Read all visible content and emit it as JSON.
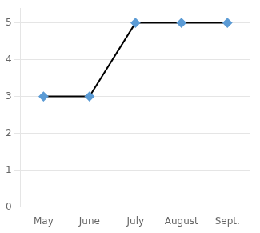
{
  "chart_data": {
    "type": "line",
    "categories": [
      "May",
      "June",
      "July",
      "August",
      "Sept."
    ],
    "values": [
      3,
      3,
      5,
      5,
      5
    ],
    "color": "black",
    "colors": [
      "#5b9bd5",
      "#5b9bd5",
      "#5b9bd5",
      "#5b9bd5",
      "#5b9bd5"
    ],
    "marker": "diamond",
    "ylim": [
      0,
      5.4
    ],
    "yticks": [
      0,
      1,
      2,
      3,
      4,
      5
    ],
    "grid": true
  }
}
